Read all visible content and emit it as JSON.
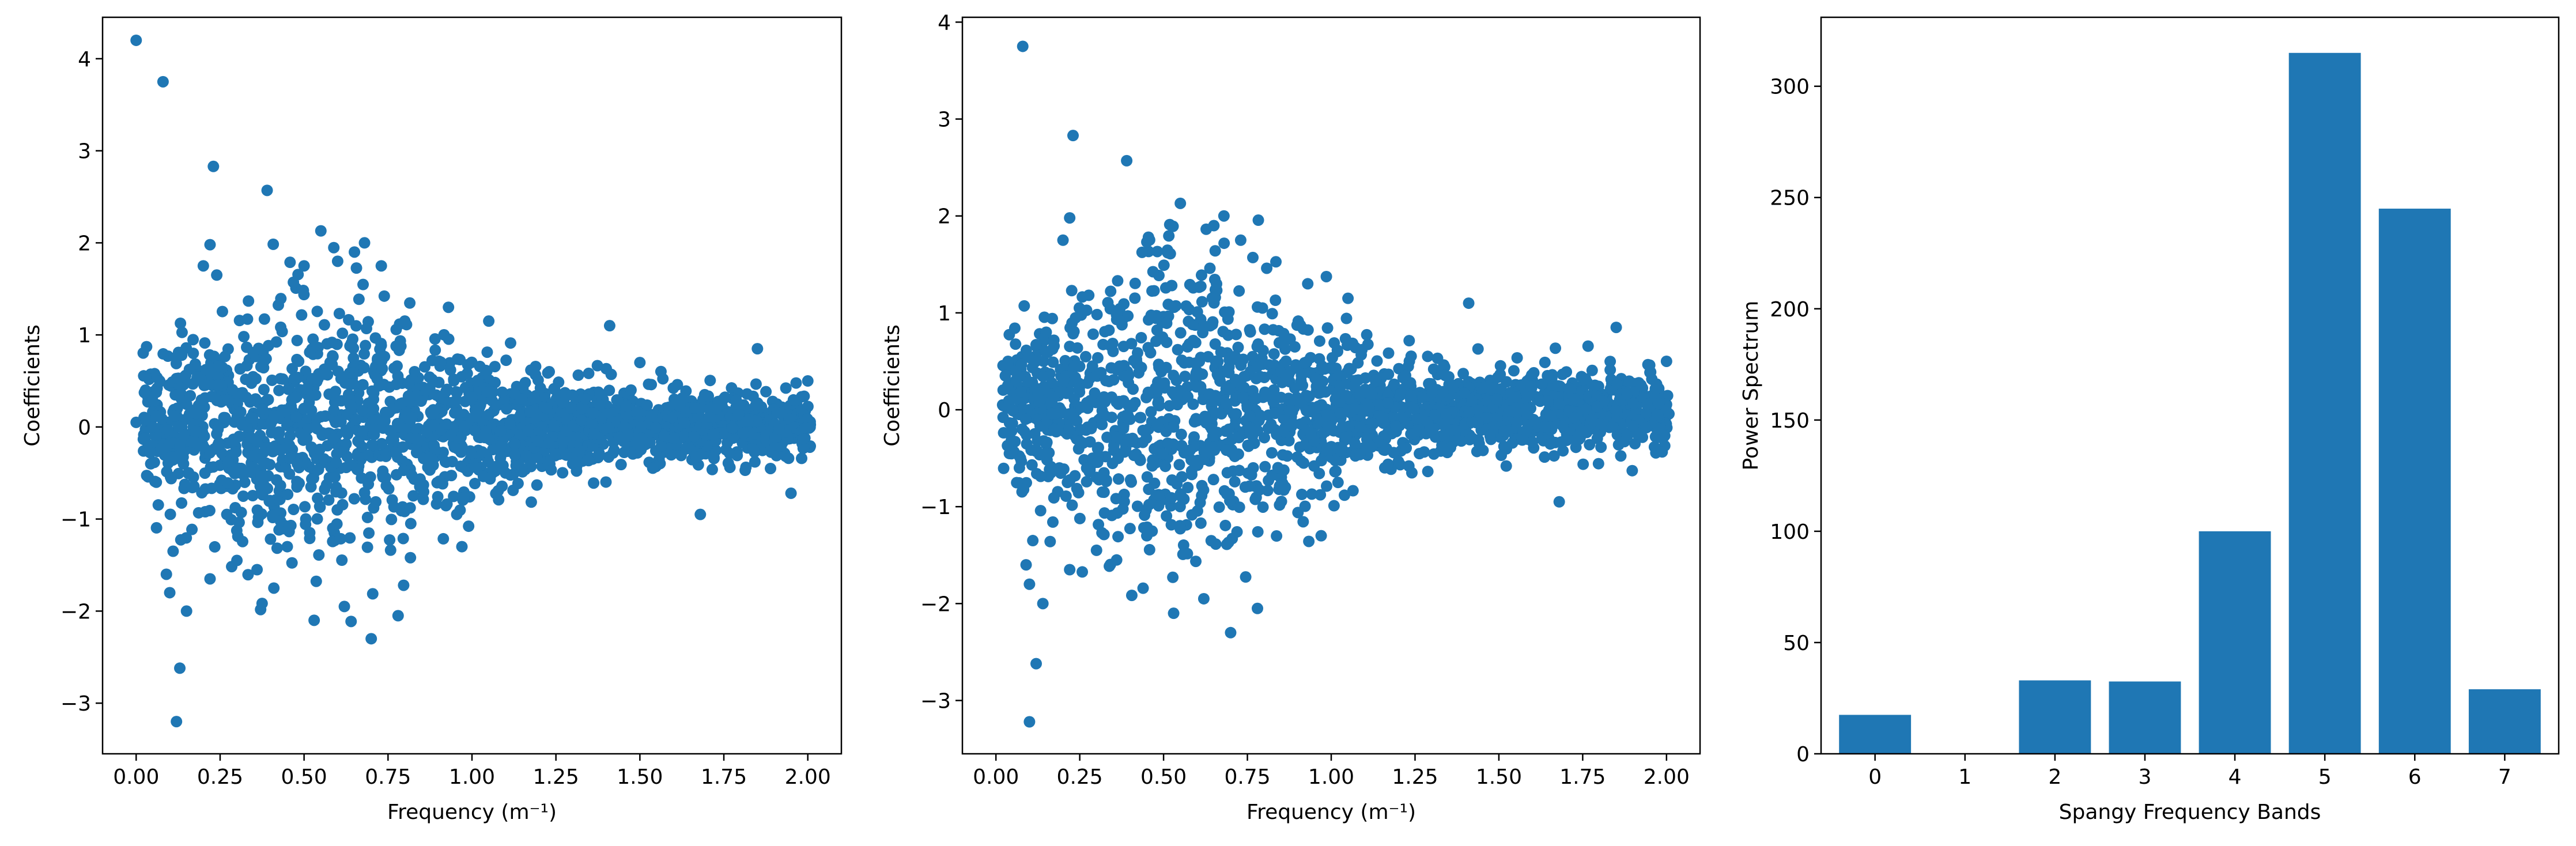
{
  "colors": {
    "series": "#1f77b4",
    "axes": "#000000",
    "background": "#ffffff"
  },
  "chart_data": [
    {
      "type": "scatter",
      "title": "",
      "xlabel": "Frequency (m⁻¹)",
      "ylabel": "Coefficients",
      "xlim": [
        -0.1,
        2.1
      ],
      "ylim": [
        -3.55,
        4.45
      ],
      "xticks": [
        0.0,
        0.25,
        0.5,
        0.75,
        1.0,
        1.25,
        1.5,
        1.75,
        2.0
      ],
      "xtick_labels": [
        "0.00",
        "0.25",
        "0.50",
        "0.75",
        "1.00",
        "1.25",
        "1.50",
        "1.75",
        "2.00"
      ],
      "yticks": [
        -3,
        -2,
        -1,
        0,
        1,
        2,
        3,
        4
      ],
      "ytick_labels": [
        "−3",
        "−2",
        "−1",
        "0",
        "1",
        "2",
        "3",
        "4"
      ],
      "grid": false,
      "legend": "none",
      "point_count_approx": 2000,
      "points": [
        [
          0.0,
          4.2
        ],
        [
          0.08,
          3.75
        ],
        [
          0.23,
          2.83
        ],
        [
          0.39,
          2.57
        ],
        [
          0.55,
          2.13
        ],
        [
          0.0,
          0.05
        ],
        [
          0.03,
          0.08
        ],
        [
          0.05,
          0.0
        ],
        [
          0.06,
          0.12
        ],
        [
          0.07,
          0.5
        ],
        [
          0.06,
          -0.6
        ],
        [
          0.09,
          -1.6
        ],
        [
          0.1,
          -1.8
        ],
        [
          0.11,
          -1.35
        ],
        [
          0.12,
          -3.2
        ],
        [
          0.13,
          -2.62
        ],
        [
          0.15,
          -2.0
        ],
        [
          0.13,
          -0.2
        ],
        [
          0.17,
          0.8
        ],
        [
          0.2,
          1.75
        ],
        [
          0.22,
          1.98
        ],
        [
          0.24,
          1.65
        ],
        [
          0.22,
          -1.65
        ],
        [
          0.27,
          -0.95
        ],
        [
          0.3,
          -1.45
        ],
        [
          0.36,
          -1.55
        ],
        [
          0.41,
          -1.75
        ],
        [
          0.45,
          -1.3
        ],
        [
          0.48,
          -0.4
        ],
        [
          0.5,
          1.75
        ],
        [
          0.53,
          -2.1
        ],
        [
          0.6,
          1.8
        ],
        [
          0.62,
          -1.95
        ],
        [
          0.65,
          1.9
        ],
        [
          0.68,
          2.0
        ],
        [
          0.7,
          -2.3
        ],
        [
          0.73,
          1.75
        ],
        [
          0.78,
          -2.05
        ],
        [
          0.8,
          1.15
        ],
        [
          0.93,
          1.3
        ],
        [
          0.97,
          -1.3
        ],
        [
          1.05,
          1.15
        ],
        [
          1.41,
          1.1
        ],
        [
          1.68,
          -0.95
        ],
        [
          1.85,
          0.85
        ],
        [
          1.23,
          0.6
        ],
        [
          1.5,
          0.7
        ],
        [
          2.0,
          0.5
        ],
        [
          1.95,
          -0.72
        ],
        [
          1.1,
          -0.5
        ]
      ]
    },
    {
      "type": "scatter",
      "title": "",
      "xlabel": "Frequency (m⁻¹)",
      "ylabel": "Coefficients",
      "xlim": [
        -0.1,
        2.1
      ],
      "ylim": [
        -3.55,
        4.05
      ],
      "xticks": [
        0.0,
        0.25,
        0.5,
        0.75,
        1.0,
        1.25,
        1.5,
        1.75,
        2.0
      ],
      "xtick_labels": [
        "0.00",
        "0.25",
        "0.50",
        "0.75",
        "1.00",
        "1.25",
        "1.50",
        "1.75",
        "2.00"
      ],
      "yticks": [
        -3,
        -2,
        -1,
        0,
        1,
        2,
        3,
        4
      ],
      "ytick_labels": [
        "−3",
        "−2",
        "−1",
        "0",
        "1",
        "2",
        "3",
        "4"
      ],
      "grid": false,
      "legend": "none",
      "point_count_approx": 2000,
      "points": [
        [
          0.08,
          3.75
        ],
        [
          0.23,
          2.83
        ],
        [
          0.39,
          2.57
        ],
        [
          0.55,
          2.13
        ],
        [
          0.22,
          1.98
        ],
        [
          0.02,
          0.05
        ],
        [
          0.04,
          0.08
        ],
        [
          0.05,
          0.0
        ],
        [
          0.07,
          -0.6
        ],
        [
          0.09,
          -1.6
        ],
        [
          0.1,
          -1.8
        ],
        [
          0.11,
          -1.35
        ],
        [
          0.1,
          -3.22
        ],
        [
          0.12,
          -2.62
        ],
        [
          0.14,
          -2.0
        ],
        [
          0.15,
          0.8
        ],
        [
          0.2,
          1.75
        ],
        [
          0.22,
          -1.65
        ],
        [
          0.3,
          -1.45
        ],
        [
          0.36,
          -1.55
        ],
        [
          0.45,
          -1.3
        ],
        [
          0.53,
          -2.1
        ],
        [
          0.62,
          -1.95
        ],
        [
          0.65,
          1.9
        ],
        [
          0.68,
          2.0
        ],
        [
          0.7,
          -2.3
        ],
        [
          0.73,
          1.75
        ],
        [
          0.78,
          -2.05
        ],
        [
          0.93,
          1.3
        ],
        [
          0.97,
          -1.3
        ],
        [
          1.05,
          1.15
        ],
        [
          1.41,
          1.1
        ],
        [
          1.68,
          -0.95
        ],
        [
          1.85,
          0.85
        ],
        [
          2.0,
          0.5
        ]
      ]
    },
    {
      "type": "bar",
      "title": "",
      "xlabel": "Spangy Frequency Bands",
      "ylabel": "Power Spectrum",
      "categories": [
        "0",
        "1",
        "2",
        "3",
        "4",
        "5",
        "6",
        "7"
      ],
      "values": [
        17.5,
        0,
        33,
        32.5,
        100,
        315,
        245,
        29
      ],
      "xlim": [
        -0.6,
        7.6
      ],
      "ylim": [
        0,
        331
      ],
      "yticks": [
        0,
        50,
        100,
        150,
        200,
        250,
        300
      ],
      "ytick_labels": [
        "0",
        "50",
        "100",
        "150",
        "200",
        "250",
        "300"
      ],
      "grid": false,
      "legend": "none"
    }
  ]
}
